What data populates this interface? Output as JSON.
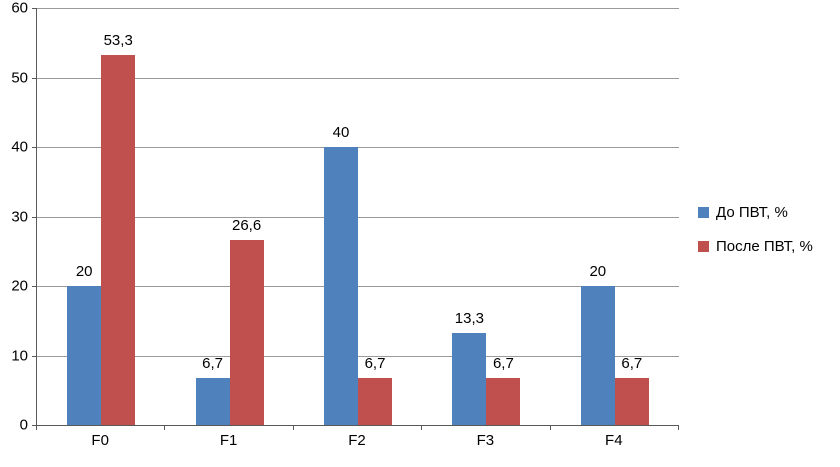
{
  "chart_data": {
    "type": "bar",
    "title": "",
    "xlabel": "",
    "ylabel": "",
    "categories": [
      "F0",
      "F1",
      "F2",
      "F3",
      "F4"
    ],
    "series": [
      {
        "name": "До ПВТ, %",
        "color": "#4F81BD",
        "values": [
          20,
          6.7,
          40,
          13.3,
          20
        ],
        "labels": [
          "20",
          "6,7",
          "40",
          "13,3",
          "20"
        ]
      },
      {
        "name": "После ПВТ, %",
        "color": "#C0504D",
        "values": [
          53.3,
          26.6,
          6.7,
          6.7,
          6.7
        ],
        "labels": [
          "53,3",
          "26,6",
          "6,7",
          "6,7",
          "6,7"
        ]
      }
    ],
    "ylim": [
      0,
      60
    ],
    "ytick_step": 10,
    "yticks": [
      "0",
      "10",
      "20",
      "30",
      "40",
      "50",
      "60"
    ],
    "grid": true,
    "legend_position": "right"
  },
  "colors": {
    "grid": "#9a9a9a",
    "axis": "#595959",
    "background": "#ffffff",
    "series_blue": "#4F81BD",
    "series_red": "#C0504D"
  }
}
